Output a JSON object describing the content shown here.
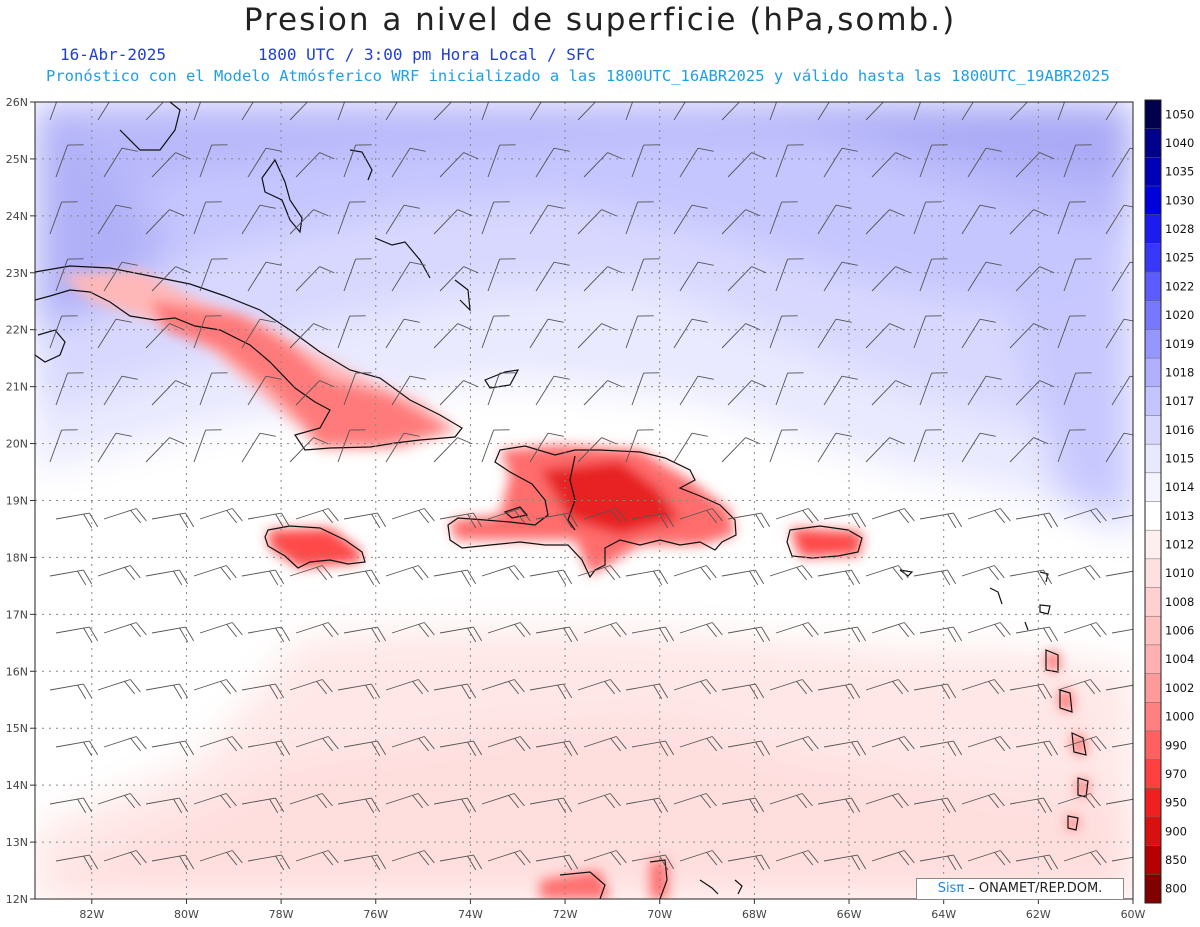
{
  "header": {
    "title": "Presion a nivel de superficie (hPa,somb.)",
    "date": "16-Abr-2025",
    "time_info": "1800 UTC / 3:00 pm Hora Local / SFC",
    "model_info": "Pronóstico con el Modelo Atmósferico WRF inicializado a las 1800UTC_16ABR2025 y válido hasta las  1800UTC_19ABR2025"
  },
  "map": {
    "lon_labels": [
      "82W",
      "80W",
      "78W",
      "76W",
      "74W",
      "72W",
      "70W",
      "68W",
      "66W",
      "64W",
      "62W",
      "60W"
    ],
    "lat_labels": [
      "26N",
      "25N",
      "24N",
      "23N",
      "22N",
      "21N",
      "20N",
      "19N",
      "18N",
      "17N",
      "16N",
      "15N",
      "14N",
      "13N",
      "12N"
    ],
    "lon_range": [
      -83.2,
      -60
    ],
    "lat_range": [
      12,
      26
    ]
  },
  "colorbar": {
    "levels": [
      "1050",
      "1040",
      "1035",
      "1030",
      "1028",
      "1025",
      "1022",
      "1020",
      "1019",
      "1018",
      "1017",
      "1016",
      "1015",
      "1014",
      "1013",
      "1012",
      "1010",
      "1008",
      "1006",
      "1004",
      "1002",
      "1000",
      "990",
      "970",
      "950",
      "900",
      "850",
      "800"
    ],
    "colors": [
      "#00004b",
      "#00008b",
      "#0000b4",
      "#0000dc",
      "#1c1cf0",
      "#3838f8",
      "#5c5cff",
      "#7878ff",
      "#9696ff",
      "#b0b0ff",
      "#c4c4ff",
      "#d8d8ff",
      "#e8e8ff",
      "#f4f4ff",
      "#ffffff",
      "#ffeeee",
      "#ffe0e0",
      "#ffd0d0",
      "#ffc0c0",
      "#ffb0b0",
      "#ff9a9a",
      "#ff8080",
      "#ff6060",
      "#ff4040",
      "#f02020",
      "#d81010",
      "#b40000",
      "#800000"
    ]
  },
  "credit": {
    "sis": "Sisπ",
    "org": " – ONAMET/REP.DOM."
  }
}
